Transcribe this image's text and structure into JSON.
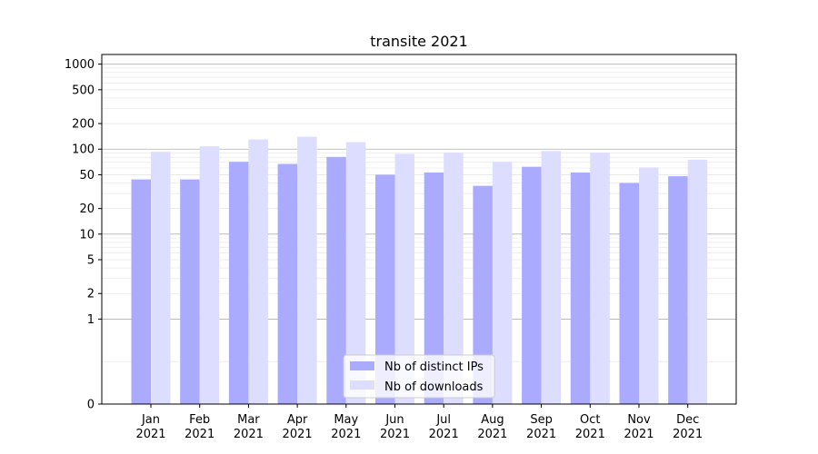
{
  "chart_data": {
    "type": "bar",
    "title": "transite 2021",
    "xlabel": "",
    "ylabel": "",
    "y_scale": "symlog",
    "ylim": [
      0,
      1300
    ],
    "y_ticks": [
      0,
      1,
      2,
      5,
      10,
      20,
      50,
      100,
      200,
      500,
      1000
    ],
    "grid": true,
    "legend_position": "lower-center",
    "categories": [
      [
        "Jan",
        "2021"
      ],
      [
        "Feb",
        "2021"
      ],
      [
        "Mar",
        "2021"
      ],
      [
        "Apr",
        "2021"
      ],
      [
        "May",
        "2021"
      ],
      [
        "Jun",
        "2021"
      ],
      [
        "Jul",
        "2021"
      ],
      [
        "Aug",
        "2021"
      ],
      [
        "Sep",
        "2021"
      ],
      [
        "Oct",
        "2021"
      ],
      [
        "Nov",
        "2021"
      ],
      [
        "Dec",
        "2021"
      ]
    ],
    "series": [
      {
        "name": "Nb of distinct IPs",
        "color": "#aaaaff",
        "values": [
          44,
          44,
          71,
          67,
          81,
          50,
          53,
          37,
          62,
          53,
          40,
          48
        ]
      },
      {
        "name": "Nb of downloads",
        "color": "#ddddff",
        "values": [
          93,
          108,
          130,
          140,
          121,
          88,
          91,
          71,
          95,
          91,
          61,
          75
        ]
      }
    ]
  }
}
